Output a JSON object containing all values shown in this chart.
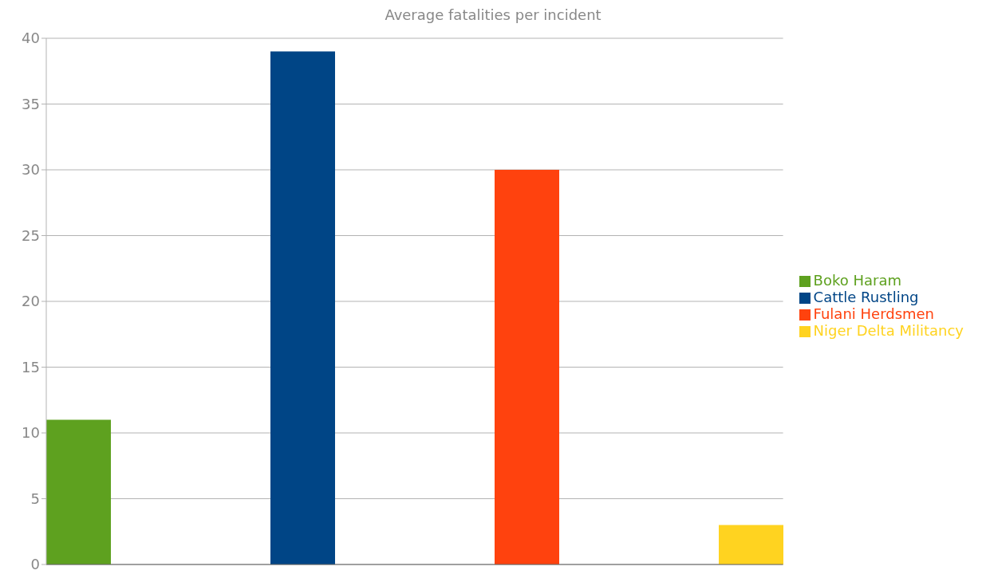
{
  "chart_data": {
    "type": "bar",
    "title": "Average fatalities per incident",
    "categories": [
      null
    ],
    "series": [
      {
        "name": "Boko Haram",
        "color": "#5ea11f",
        "values": [
          11
        ]
      },
      {
        "name": "Cattle Rustling",
        "color": "#004586",
        "values": [
          39
        ]
      },
      {
        "name": "Fulani Herdsmen",
        "color": "#ff420e",
        "values": [
          30
        ]
      },
      {
        "name": "Niger Delta Militancy",
        "color": "#ffd320",
        "values": [
          3
        ]
      }
    ],
    "ylim": [
      0,
      40
    ],
    "yticks": [
      0,
      5,
      10,
      15,
      20,
      25,
      30,
      35,
      40
    ],
    "grid": "y",
    "legend": "right"
  }
}
